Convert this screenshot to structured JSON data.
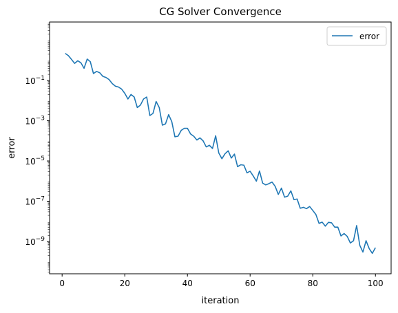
{
  "chart_data": {
    "type": "line",
    "title": "CG Solver Convergence",
    "xlabel": "iteration",
    "ylabel": "error",
    "xlim": [
      -4,
      105
    ],
    "ylim_log10": [
      -10.6,
      1.9
    ],
    "yscale": "log",
    "x_ticks": [
      0,
      20,
      40,
      60,
      80,
      100
    ],
    "y_ticks": [
      {
        "exp": -9,
        "label": "10^{-9}"
      },
      {
        "exp": -7,
        "label": "10^{-7}"
      },
      {
        "exp": -5,
        "label": "10^{-5}"
      },
      {
        "exp": -3,
        "label": "10^{-3}"
      },
      {
        "exp": -1,
        "label": "10^{-1}"
      }
    ],
    "grid": false,
    "legend_position": "top-right",
    "series": [
      {
        "name": "error",
        "color": "#1f77b4",
        "x": [
          1,
          2,
          3,
          4,
          5,
          6,
          7,
          8,
          9,
          10,
          11,
          12,
          13,
          14,
          15,
          16,
          17,
          18,
          19,
          20,
          21,
          22,
          23,
          24,
          25,
          26,
          27,
          28,
          29,
          30,
          31,
          32,
          33,
          34,
          35,
          36,
          37,
          38,
          39,
          40,
          41,
          42,
          43,
          44,
          45,
          46,
          47,
          48,
          49,
          50,
          51,
          52,
          53,
          54,
          55,
          56,
          57,
          58,
          59,
          60,
          61,
          62,
          63,
          64,
          65,
          66,
          67,
          68,
          69,
          70,
          71,
          72,
          73,
          74,
          75,
          76,
          77,
          78,
          79,
          80,
          81,
          82,
          83,
          84,
          85,
          86,
          87,
          88,
          89,
          90,
          91,
          92,
          93,
          94,
          95,
          96,
          97,
          98,
          99,
          100
        ],
        "y": [
          2.2,
          1.7,
          1.1,
          0.7,
          0.95,
          0.75,
          0.4,
          1.15,
          0.85,
          0.22,
          0.28,
          0.24,
          0.16,
          0.14,
          0.11,
          0.07,
          0.052,
          0.047,
          0.037,
          0.023,
          0.012,
          0.02,
          0.015,
          0.0045,
          0.006,
          0.012,
          0.015,
          0.0018,
          0.0023,
          0.009,
          0.0045,
          0.0006,
          0.0007,
          0.002,
          0.0009,
          0.00016,
          0.00017,
          0.00033,
          0.00042,
          0.00042,
          0.00022,
          0.00017,
          0.00011,
          0.00014,
          0.0001,
          5e-05,
          6e-05,
          4.2e-05,
          0.00018,
          2.5e-05,
          1.3e-05,
          2.3e-05,
          3.2e-05,
          1.4e-05,
          2.2e-05,
          5.2e-06,
          6.5e-06,
          6.2e-06,
          2.6e-06,
          3.1e-06,
          1.8e-06,
          1e-06,
          3.2e-06,
          8e-07,
          6.5e-07,
          7.5e-07,
          9e-07,
          5.5e-07,
          2.2e-07,
          4.5e-07,
          1.6e-07,
          1.8e-07,
          3.3e-07,
          1.2e-07,
          1.3e-07,
          4.5e-08,
          5e-08,
          4.3e-08,
          5.5e-08,
          3.5e-08,
          2.2e-08,
          8e-09,
          9.2e-09,
          5.8e-09,
          9e-09,
          8.5e-09,
          5.2e-09,
          5.2e-09,
          1.9e-09,
          2.5e-09,
          1.8e-09,
          8.5e-10,
          1.1e-09,
          6.2e-09,
          6.5e-10,
          3e-10,
          1.1e-09,
          4.5e-10,
          2.6e-10,
          5e-10
        ]
      }
    ]
  }
}
